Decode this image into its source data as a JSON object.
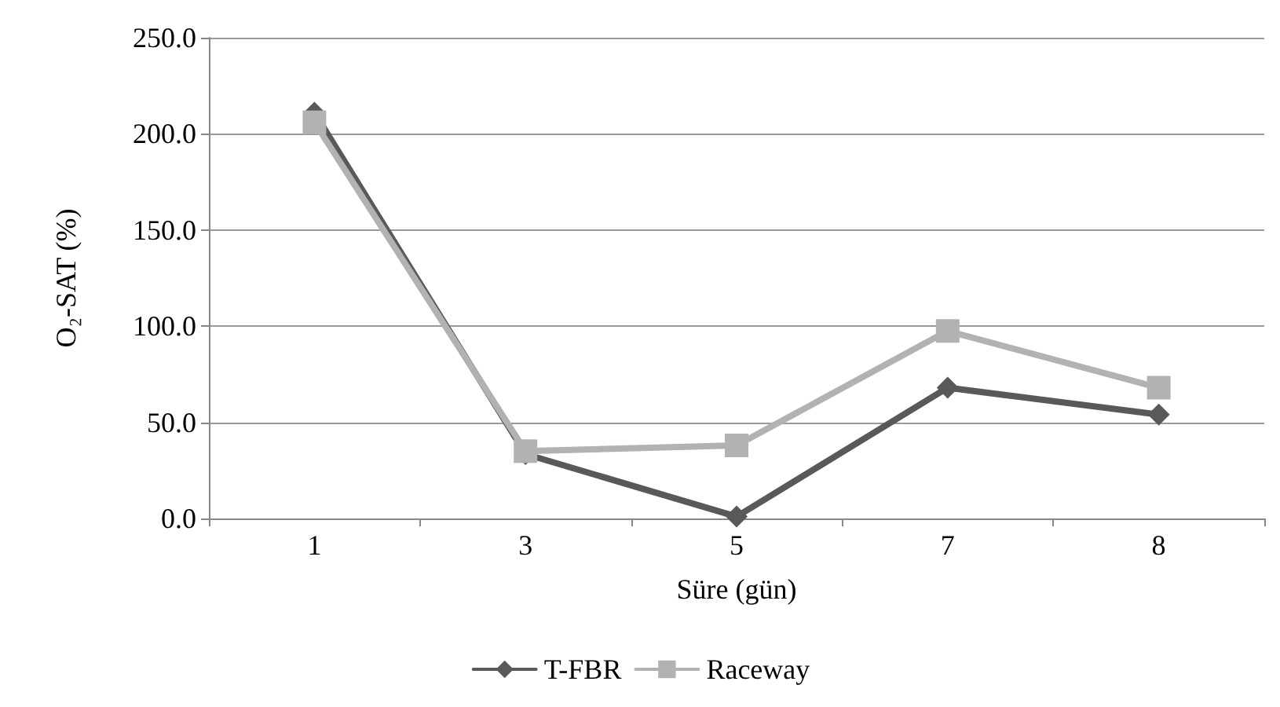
{
  "chart_data": {
    "type": "line",
    "xlabel": "Süre (gün)",
    "ylabel": "O₂-SAT (%)",
    "categories": [
      "1",
      "3",
      "5",
      "7",
      "8"
    ],
    "series": [
      {
        "name": "T-FBR",
        "color": "#595959",
        "marker": "diamond",
        "values": [
          211,
          33.5,
          1,
          68,
          54
        ]
      },
      {
        "name": "Raceway",
        "color": "#b2b2b2",
        "marker": "square",
        "values": [
          206,
          35,
          38,
          97.5,
          68
        ]
      }
    ],
    "ylim": [
      0,
      250
    ],
    "yticks": [
      {
        "value": 0,
        "label": "0.0"
      },
      {
        "value": 50,
        "label": "50.0"
      },
      {
        "value": 100,
        "label": "100.0"
      },
      {
        "value": 150,
        "label": "150.0"
      },
      {
        "value": 200,
        "label": "200.0"
      },
      {
        "value": 250,
        "label": "250.0"
      }
    ],
    "grid": "y",
    "legend": "bottom",
    "line_style": "solid"
  }
}
